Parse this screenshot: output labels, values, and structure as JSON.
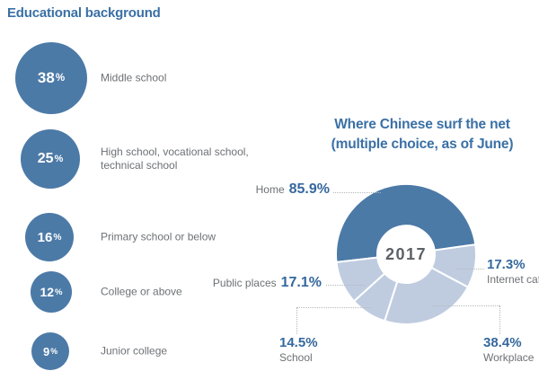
{
  "page": {
    "background": "#ffffff"
  },
  "colors": {
    "accent_blue": "#4c7aa7",
    "light_slice": "#bfcce0",
    "title_blue": "#3a70a5",
    "percent_blue": "#35689d",
    "text_gray": "#6d7175",
    "leader_gray": "#b4b7b9",
    "center_label_gray": "#5a6167",
    "bg": "#ffffff"
  },
  "chart_data": [
    {
      "type": "bar",
      "subtype": "bubble-list",
      "title": "Educational background",
      "categories": [
        "Middle school",
        "High school, vocational school, technical school",
        "Primary school or below",
        "College or above",
        "Junior college"
      ],
      "values": [
        38,
        25,
        16,
        12,
        9
      ],
      "unit": "%",
      "color": "#4c7aa7",
      "value_label_color": "#ffffff",
      "layout_hint": "vertical list of circles, circle size proportional to value, category label right of circle"
    },
    {
      "type": "pie",
      "subtype": "donut",
      "title": "Where Chinese surf the net",
      "subtitle": "(multiple choice, as of June)",
      "center_label": "2017",
      "categories": [
        "Home",
        "Internet cafe",
        "Workplace",
        "School",
        "Public places"
      ],
      "values": [
        85.9,
        17.3,
        38.4,
        14.5,
        17.1
      ],
      "unit": "%",
      "highlight": {
        "category": "Home",
        "color": "#4c7aa7"
      },
      "slice_color": "#bfcce0",
      "legend": "none",
      "layout_hint": "slices proportional to values (multiple choice, sum 173.2); callout labels with dotted leader lines; dark slice = Home"
    }
  ]
}
